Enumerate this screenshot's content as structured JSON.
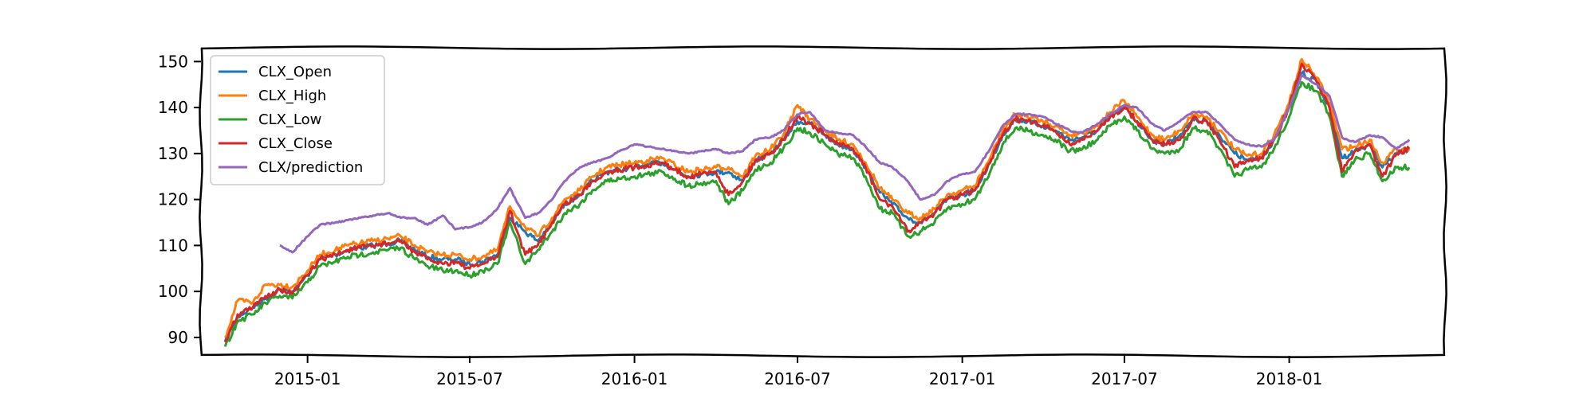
{
  "chart_data": {
    "type": "line",
    "title": "",
    "xlabel": "",
    "ylabel": "",
    "x_ticks": [
      "2015-01",
      "2015-07",
      "2016-01",
      "2016-07",
      "2017-01",
      "2017-07",
      "2018-01"
    ],
    "y_ticks": [
      90,
      100,
      110,
      120,
      130,
      140,
      150
    ],
    "xlim": [
      "2014-09-04",
      "2018-06-24"
    ],
    "ylim": [
      86,
      153
    ],
    "legend_position": "top-left",
    "grid": false,
    "series": [
      {
        "name": "CLX_Open",
        "color": "#1f77b4",
        "x": [
          "2014-10-01",
          "2014-10-15",
          "2014-11-01",
          "2014-11-15",
          "2014-12-01",
          "2014-12-15",
          "2015-01-01",
          "2015-01-15",
          "2015-02-01",
          "2015-02-15",
          "2015-03-01",
          "2015-03-15",
          "2015-04-01",
          "2015-04-15",
          "2015-05-01",
          "2015-05-15",
          "2015-06-01",
          "2015-06-15",
          "2015-07-01",
          "2015-07-15",
          "2015-08-01",
          "2015-08-15",
          "2015-09-01",
          "2015-09-15",
          "2015-10-01",
          "2015-10-15",
          "2015-11-01",
          "2015-11-15",
          "2015-12-01",
          "2015-12-15",
          "2016-01-01",
          "2016-01-15",
          "2016-02-01",
          "2016-02-15",
          "2016-03-01",
          "2016-03-15",
          "2016-04-01",
          "2016-04-15",
          "2016-05-01",
          "2016-05-15",
          "2016-06-01",
          "2016-06-15",
          "2016-07-01",
          "2016-07-15",
          "2016-08-01",
          "2016-08-15",
          "2016-09-01",
          "2016-09-15",
          "2016-10-01",
          "2016-10-15",
          "2016-11-01",
          "2016-11-15",
          "2016-12-01",
          "2016-12-15",
          "2017-01-01",
          "2017-01-15",
          "2017-02-01",
          "2017-02-15",
          "2017-03-01",
          "2017-03-15",
          "2017-04-01",
          "2017-04-15",
          "2017-05-01",
          "2017-05-15",
          "2017-06-01",
          "2017-06-15",
          "2017-07-01",
          "2017-07-15",
          "2017-08-01",
          "2017-08-15",
          "2017-09-01",
          "2017-09-15",
          "2017-10-01",
          "2017-10-15",
          "2017-11-01",
          "2017-11-15",
          "2017-12-01",
          "2017-12-15",
          "2018-01-01",
          "2018-01-15",
          "2018-02-01",
          "2018-02-15",
          "2018-03-01",
          "2018-03-15",
          "2018-04-01",
          "2018-04-15",
          "2018-05-01",
          "2018-05-15"
        ],
        "values": [
          89.0,
          94.5,
          96.5,
          98.5,
          100.5,
          100.0,
          103.5,
          107.0,
          108.0,
          109.0,
          109.5,
          110.0,
          110.5,
          111.0,
          109.0,
          107.5,
          107.0,
          107.0,
          106.0,
          106.5,
          108.0,
          116.0,
          113.0,
          111.0,
          115.0,
          119.0,
          121.0,
          124.0,
          126.0,
          126.5,
          127.0,
          127.5,
          128.0,
          126.5,
          125.0,
          125.5,
          126.0,
          126.0,
          124.0,
          128.5,
          130.0,
          133.0,
          137.0,
          136.5,
          134.0,
          132.0,
          131.0,
          127.0,
          121.5,
          119.0,
          116.0,
          115.0,
          117.0,
          120.0,
          121.0,
          122.0,
          128.0,
          134.0,
          137.5,
          137.0,
          136.0,
          135.0,
          133.0,
          133.5,
          135.0,
          138.0,
          140.0,
          137.0,
          133.0,
          132.0,
          134.0,
          137.5,
          137.0,
          134.0,
          130.0,
          128.5,
          129.0,
          133.0,
          140.0,
          147.5,
          145.5,
          140.0,
          129.0,
          130.5,
          132.0,
          127.0,
          130.0,
          131.0
        ]
      },
      {
        "name": "CLX_High",
        "color": "#ff7f0e",
        "x": [
          "2014-10-01",
          "2014-10-15",
          "2014-11-01",
          "2014-11-15",
          "2014-12-01",
          "2014-12-15",
          "2015-01-01",
          "2015-01-15",
          "2015-02-01",
          "2015-02-15",
          "2015-03-01",
          "2015-03-15",
          "2015-04-01",
          "2015-04-15",
          "2015-05-01",
          "2015-05-15",
          "2015-06-01",
          "2015-06-15",
          "2015-07-01",
          "2015-07-15",
          "2015-08-01",
          "2015-08-15",
          "2015-09-01",
          "2015-09-15",
          "2015-10-01",
          "2015-10-15",
          "2015-11-01",
          "2015-11-15",
          "2015-12-01",
          "2015-12-15",
          "2016-01-01",
          "2016-01-15",
          "2016-02-01",
          "2016-02-15",
          "2016-03-01",
          "2016-03-15",
          "2016-04-01",
          "2016-04-15",
          "2016-05-01",
          "2016-05-15",
          "2016-06-01",
          "2016-06-15",
          "2016-07-01",
          "2016-07-15",
          "2016-08-01",
          "2016-08-15",
          "2016-09-01",
          "2016-09-15",
          "2016-10-01",
          "2016-10-15",
          "2016-11-01",
          "2016-11-15",
          "2016-12-01",
          "2016-12-15",
          "2017-01-01",
          "2017-01-15",
          "2017-02-01",
          "2017-02-15",
          "2017-03-01",
          "2017-03-15",
          "2017-04-01",
          "2017-04-15",
          "2017-05-01",
          "2017-05-15",
          "2017-06-01",
          "2017-06-15",
          "2017-07-01",
          "2017-07-15",
          "2017-08-01",
          "2017-08-15",
          "2017-09-01",
          "2017-09-15",
          "2017-10-01",
          "2017-10-15",
          "2017-11-01",
          "2017-11-15",
          "2017-12-01",
          "2017-12-15",
          "2018-01-01",
          "2018-01-15",
          "2018-02-01",
          "2018-02-15",
          "2018-03-01",
          "2018-03-15",
          "2018-04-01",
          "2018-04-15",
          "2018-05-01",
          "2018-05-15"
        ],
        "values": [
          90.0,
          98.0,
          97.5,
          101.5,
          101.5,
          101.0,
          104.5,
          108.0,
          109.0,
          110.0,
          110.5,
          111.0,
          111.5,
          112.0,
          110.0,
          108.5,
          108.0,
          108.0,
          107.0,
          107.5,
          109.0,
          118.5,
          114.0,
          112.0,
          116.0,
          120.0,
          122.0,
          125.0,
          127.0,
          127.5,
          128.0,
          128.5,
          129.0,
          127.5,
          126.0,
          126.5,
          127.0,
          127.0,
          125.0,
          129.5,
          131.0,
          134.0,
          140.5,
          137.5,
          135.0,
          133.0,
          132.0,
          128.0,
          122.5,
          120.0,
          117.0,
          116.0,
          118.0,
          121.0,
          122.0,
          123.0,
          129.0,
          135.0,
          138.5,
          138.0,
          137.0,
          136.0,
          134.0,
          134.5,
          136.0,
          139.0,
          141.5,
          138.0,
          134.0,
          133.0,
          135.0,
          138.5,
          138.0,
          135.0,
          131.0,
          129.5,
          130.0,
          134.0,
          141.0,
          150.5,
          146.5,
          141.0,
          131.0,
          131.5,
          133.0,
          128.0,
          131.0,
          131.0
        ]
      },
      {
        "name": "CLX_Low",
        "color": "#2ca02c",
        "x": [
          "2014-10-01",
          "2014-10-15",
          "2014-11-01",
          "2014-11-15",
          "2014-12-01",
          "2014-12-15",
          "2015-01-01",
          "2015-01-15",
          "2015-02-01",
          "2015-02-15",
          "2015-03-01",
          "2015-03-15",
          "2015-04-01",
          "2015-04-15",
          "2015-05-01",
          "2015-05-15",
          "2015-06-01",
          "2015-06-15",
          "2015-07-01",
          "2015-07-15",
          "2015-08-01",
          "2015-08-15",
          "2015-09-01",
          "2015-09-15",
          "2015-10-01",
          "2015-10-15",
          "2015-11-01",
          "2015-11-15",
          "2015-12-01",
          "2015-12-15",
          "2016-01-01",
          "2016-01-15",
          "2016-02-01",
          "2016-02-15",
          "2016-03-01",
          "2016-03-15",
          "2016-04-01",
          "2016-04-15",
          "2016-05-01",
          "2016-05-15",
          "2016-06-01",
          "2016-06-15",
          "2016-07-01",
          "2016-07-15",
          "2016-08-01",
          "2016-08-15",
          "2016-09-01",
          "2016-09-15",
          "2016-10-01",
          "2016-10-15",
          "2016-11-01",
          "2016-11-15",
          "2016-12-01",
          "2016-12-15",
          "2017-01-01",
          "2017-01-15",
          "2017-02-01",
          "2017-02-15",
          "2017-03-01",
          "2017-03-15",
          "2017-04-01",
          "2017-04-15",
          "2017-05-01",
          "2017-05-15",
          "2017-06-01",
          "2017-06-15",
          "2017-07-01",
          "2017-07-15",
          "2017-08-01",
          "2017-08-15",
          "2017-09-01",
          "2017-09-15",
          "2017-10-01",
          "2017-10-15",
          "2017-11-01",
          "2017-11-15",
          "2017-12-01",
          "2017-12-15",
          "2018-01-01",
          "2018-01-15",
          "2018-02-01",
          "2018-02-15",
          "2018-03-01",
          "2018-03-15",
          "2018-04-01",
          "2018-04-15",
          "2018-05-01",
          "2018-05-15"
        ],
        "values": [
          88.0,
          93.5,
          95.0,
          97.5,
          99.0,
          98.5,
          102.0,
          105.5,
          106.5,
          107.5,
          108.0,
          108.5,
          109.0,
          109.5,
          107.0,
          105.5,
          104.5,
          104.5,
          103.5,
          104.5,
          106.0,
          115.0,
          106.0,
          109.0,
          113.0,
          117.0,
          119.0,
          122.0,
          124.0,
          124.5,
          125.0,
          125.5,
          126.0,
          124.5,
          123.0,
          123.5,
          124.0,
          119.0,
          122.0,
          126.5,
          128.0,
          131.0,
          135.5,
          134.5,
          132.0,
          130.0,
          129.0,
          125.0,
          118.0,
          117.0,
          112.0,
          113.0,
          115.0,
          118.0,
          119.0,
          120.0,
          126.0,
          132.0,
          135.5,
          135.0,
          134.0,
          133.0,
          130.5,
          131.0,
          133.0,
          136.0,
          138.0,
          135.0,
          131.0,
          130.0,
          131.0,
          135.5,
          135.0,
          131.0,
          125.0,
          126.5,
          127.0,
          131.0,
          138.0,
          145.5,
          143.5,
          138.0,
          125.0,
          128.5,
          130.0,
          124.0,
          127.0,
          127.0
        ]
      },
      {
        "name": "CLX_Close",
        "color": "#d62728",
        "x": [
          "2014-10-01",
          "2014-10-15",
          "2014-11-01",
          "2014-11-15",
          "2014-12-01",
          "2014-12-15",
          "2015-01-01",
          "2015-01-15",
          "2015-02-01",
          "2015-02-15",
          "2015-03-01",
          "2015-03-15",
          "2015-04-01",
          "2015-04-15",
          "2015-05-01",
          "2015-05-15",
          "2015-06-01",
          "2015-06-15",
          "2015-07-01",
          "2015-07-15",
          "2015-08-01",
          "2015-08-15",
          "2015-09-01",
          "2015-09-15",
          "2015-10-01",
          "2015-10-15",
          "2015-11-01",
          "2015-11-15",
          "2015-12-01",
          "2015-12-15",
          "2016-01-01",
          "2016-01-15",
          "2016-02-01",
          "2016-02-15",
          "2016-03-01",
          "2016-03-15",
          "2016-04-01",
          "2016-04-15",
          "2016-05-01",
          "2016-05-15",
          "2016-06-01",
          "2016-06-15",
          "2016-07-01",
          "2016-07-15",
          "2016-08-01",
          "2016-08-15",
          "2016-09-01",
          "2016-09-15",
          "2016-10-01",
          "2016-10-15",
          "2016-11-01",
          "2016-11-15",
          "2016-12-01",
          "2016-12-15",
          "2017-01-01",
          "2017-01-15",
          "2017-02-01",
          "2017-02-15",
          "2017-03-01",
          "2017-03-15",
          "2017-04-01",
          "2017-04-15",
          "2017-05-01",
          "2017-05-15",
          "2017-06-01",
          "2017-06-15",
          "2017-07-01",
          "2017-07-15",
          "2017-08-01",
          "2017-08-15",
          "2017-09-01",
          "2017-09-15",
          "2017-10-01",
          "2017-10-15",
          "2017-11-01",
          "2017-11-15",
          "2017-12-01",
          "2017-12-15",
          "2018-01-01",
          "2018-01-15",
          "2018-02-01",
          "2018-02-15",
          "2018-03-01",
          "2018-03-15",
          "2018-04-01",
          "2018-04-15",
          "2018-05-01",
          "2018-05-15"
        ],
        "values": [
          89.0,
          95.0,
          96.5,
          99.0,
          100.5,
          99.5,
          103.5,
          107.0,
          108.0,
          109.0,
          109.5,
          110.0,
          110.5,
          111.0,
          108.5,
          107.0,
          106.0,
          106.5,
          105.0,
          106.0,
          107.5,
          117.5,
          108.0,
          110.0,
          115.0,
          119.0,
          121.0,
          124.0,
          126.0,
          126.5,
          127.0,
          127.5,
          128.0,
          126.5,
          125.0,
          125.5,
          126.0,
          121.0,
          124.0,
          128.5,
          130.0,
          133.0,
          138.0,
          136.5,
          134.0,
          132.0,
          131.0,
          127.0,
          120.0,
          118.5,
          113.0,
          115.0,
          117.0,
          120.0,
          121.0,
          122.0,
          128.0,
          134.0,
          137.5,
          137.0,
          136.0,
          135.0,
          132.0,
          133.0,
          135.0,
          138.0,
          140.0,
          137.0,
          133.0,
          132.0,
          133.0,
          137.5,
          137.0,
          133.0,
          127.0,
          128.5,
          129.0,
          133.0,
          140.0,
          149.5,
          145.5,
          140.0,
          126.0,
          130.5,
          132.0,
          125.0,
          130.0,
          131.0
        ]
      },
      {
        "name": "CLX/prediction",
        "color": "#9467bd",
        "x": [
          "2014-12-01",
          "2014-12-15",
          "2015-01-01",
          "2015-01-15",
          "2015-02-01",
          "2015-02-15",
          "2015-03-01",
          "2015-03-15",
          "2015-04-01",
          "2015-04-15",
          "2015-05-01",
          "2015-05-15",
          "2015-06-01",
          "2015-06-15",
          "2015-07-01",
          "2015-07-15",
          "2015-08-01",
          "2015-08-15",
          "2015-09-01",
          "2015-09-15",
          "2015-10-01",
          "2015-10-15",
          "2015-11-01",
          "2015-11-15",
          "2015-12-01",
          "2015-12-15",
          "2016-01-01",
          "2016-01-15",
          "2016-02-01",
          "2016-02-15",
          "2016-03-01",
          "2016-03-15",
          "2016-04-01",
          "2016-04-15",
          "2016-05-01",
          "2016-05-15",
          "2016-06-01",
          "2016-06-15",
          "2016-07-01",
          "2016-07-15",
          "2016-08-01",
          "2016-08-15",
          "2016-09-01",
          "2016-09-15",
          "2016-10-01",
          "2016-10-15",
          "2016-11-01",
          "2016-11-15",
          "2016-12-01",
          "2016-12-15",
          "2017-01-01",
          "2017-01-15",
          "2017-02-01",
          "2017-02-15",
          "2017-03-01",
          "2017-03-15",
          "2017-04-01",
          "2017-04-15",
          "2017-05-01",
          "2017-05-15",
          "2017-06-01",
          "2017-06-15",
          "2017-07-01",
          "2017-07-15",
          "2017-08-01",
          "2017-08-15",
          "2017-09-01",
          "2017-09-15",
          "2017-10-01",
          "2017-10-15",
          "2017-11-01",
          "2017-11-15",
          "2017-12-01",
          "2017-12-15",
          "2018-01-01",
          "2018-01-15",
          "2018-02-01",
          "2018-02-15",
          "2018-03-01",
          "2018-03-15",
          "2018-04-01",
          "2018-04-15",
          "2018-05-01",
          "2018-05-15"
        ],
        "values": [
          110.0,
          108.5,
          112.0,
          114.5,
          115.0,
          115.5,
          116.0,
          116.5,
          117.0,
          116.0,
          116.0,
          114.5,
          116.5,
          113.5,
          114.0,
          115.0,
          118.0,
          122.5,
          116.0,
          117.0,
          120.0,
          124.0,
          127.0,
          128.0,
          129.0,
          130.5,
          132.0,
          131.5,
          131.0,
          130.5,
          130.0,
          130.5,
          131.0,
          130.0,
          130.5,
          133.0,
          133.5,
          135.0,
          138.5,
          139.0,
          135.0,
          134.5,
          134.0,
          131.5,
          128.0,
          127.0,
          124.0,
          120.0,
          121.0,
          124.0,
          125.5,
          126.0,
          131.0,
          136.0,
          138.5,
          138.5,
          138.0,
          136.5,
          135.0,
          134.5,
          136.5,
          138.5,
          140.5,
          140.0,
          136.5,
          135.0,
          137.0,
          139.0,
          139.0,
          136.5,
          133.0,
          132.0,
          131.5,
          133.0,
          140.0,
          147.0,
          145.0,
          142.5,
          133.5,
          132.5,
          134.0,
          133.5,
          131.0,
          133.0
        ]
      }
    ]
  }
}
